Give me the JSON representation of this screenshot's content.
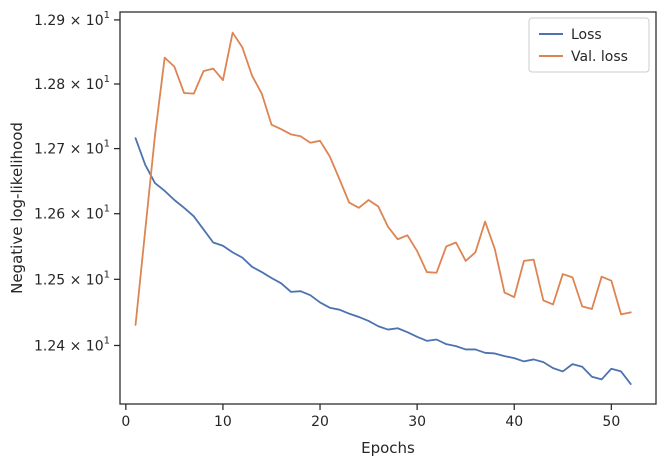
{
  "chart_data": {
    "type": "line",
    "title": "",
    "xlabel": "Epochs",
    "ylabel": "Negative log-likelihood",
    "yscale": "log",
    "xlim": [
      -0.6,
      54.6
    ],
    "ylim": [
      12.3122,
      12.9124
    ],
    "grid": false,
    "legend_position": "top-right",
    "x": [
      1,
      2,
      3,
      4,
      5,
      6,
      7,
      8,
      9,
      10,
      11,
      12,
      13,
      14,
      15,
      16,
      17,
      18,
      19,
      20,
      21,
      22,
      23,
      24,
      25,
      26,
      27,
      28,
      29,
      30,
      31,
      32,
      33,
      34,
      35,
      36,
      37,
      38,
      39,
      40,
      41,
      42,
      43,
      44,
      45,
      46,
      47,
      48,
      49,
      50,
      51,
      52
    ],
    "x_ticks": [
      0,
      10,
      20,
      30,
      40,
      50
    ],
    "x_tick_labels": [
      "0",
      "10",
      "20",
      "30",
      "40",
      "50"
    ],
    "y_ticks": [
      12.4,
      12.5,
      12.6,
      12.7,
      12.8,
      12.9
    ],
    "y_tick_labels": [
      {
        "base": "1.24",
        "mult": "× 10",
        "exp": "1"
      },
      {
        "base": "1.25",
        "mult": "× 10",
        "exp": "1"
      },
      {
        "base": "1.26",
        "mult": "× 10",
        "exp": "1"
      },
      {
        "base": "1.27",
        "mult": "× 10",
        "exp": "1"
      },
      {
        "base": "1.28",
        "mult": "× 10",
        "exp": "1"
      },
      {
        "base": "1.29",
        "mult": "× 10",
        "exp": "1"
      }
    ],
    "series": [
      {
        "name": "Loss",
        "color": "#4c72b0",
        "values": [
          12.716,
          12.675,
          12.647,
          12.635,
          12.621,
          12.609,
          12.596,
          12.576,
          12.556,
          12.551,
          12.541,
          12.533,
          12.519,
          12.511,
          12.502,
          12.494,
          12.481,
          12.482,
          12.476,
          12.465,
          12.457,
          12.454,
          12.448,
          12.443,
          12.437,
          12.429,
          12.424,
          12.426,
          12.42,
          12.413,
          12.407,
          12.409,
          12.402,
          12.399,
          12.394,
          12.394,
          12.389,
          12.388,
          12.384,
          12.381,
          12.376,
          12.379,
          12.375,
          12.366,
          12.361,
          12.372,
          12.368,
          12.353,
          12.349,
          12.365,
          12.361,
          12.342
        ]
      },
      {
        "name": "Val. loss",
        "color": "#dd8452",
        "values": [
          12.431,
          12.575,
          12.72,
          12.841,
          12.827,
          12.786,
          12.785,
          12.82,
          12.824,
          12.806,
          12.88,
          12.857,
          12.813,
          12.785,
          12.737,
          12.73,
          12.722,
          12.719,
          12.709,
          12.712,
          12.688,
          12.653,
          12.617,
          12.609,
          12.621,
          12.611,
          12.58,
          12.561,
          12.567,
          12.543,
          12.511,
          12.51,
          12.55,
          12.556,
          12.528,
          12.541,
          12.588,
          12.546,
          12.48,
          12.473,
          12.528,
          12.53,
          12.468,
          12.462,
          12.508,
          12.503,
          12.459,
          12.455,
          12.504,
          12.498,
          12.447,
          12.45
        ]
      }
    ]
  }
}
